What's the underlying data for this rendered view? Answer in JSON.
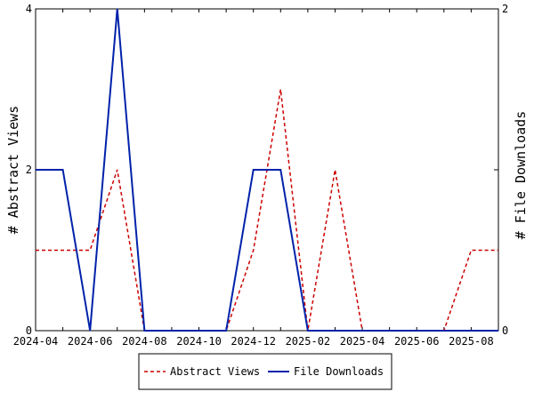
{
  "chart_data": {
    "type": "line",
    "title": "",
    "x": [
      "2024-04",
      "2024-05",
      "2024-06",
      "2024-07",
      "2024-08",
      "2024-09",
      "2024-10",
      "2024-11",
      "2024-12",
      "2025-01",
      "2025-02",
      "2025-03",
      "2025-04",
      "2025-05",
      "2025-06",
      "2025-07",
      "2025-08",
      "2025-09"
    ],
    "x_tick_labels": [
      "2024-04",
      "2024-06",
      "2024-08",
      "2024-10",
      "2024-12",
      "2025-02",
      "2025-04",
      "2025-06",
      "2025-08"
    ],
    "ylabel_left": "# Abstract Views",
    "ylabel_right": "# File Downloads",
    "ylim_left": [
      0,
      4
    ],
    "ylim_right": [
      0,
      2
    ],
    "yticks_left": [
      "0",
      "2",
      "4"
    ],
    "yticks_right": [
      "0",
      "1",
      "2"
    ],
    "grid": false,
    "legend_position": "bottom",
    "series": [
      {
        "name": "Abstract Views",
        "axis": "left",
        "color": "#cc0000",
        "dash": "dashed",
        "values": [
          1,
          1,
          1,
          2,
          0,
          0,
          0,
          0,
          1,
          3,
          0,
          2,
          0,
          0,
          0,
          0,
          1,
          1
        ]
      },
      {
        "name": "File Downloads",
        "axis": "right",
        "color": "#0022aa",
        "dash": "solid",
        "values": [
          1,
          1,
          0,
          2,
          0,
          0,
          0,
          0,
          1,
          1,
          0,
          0,
          0,
          0,
          0,
          0,
          0,
          0
        ]
      }
    ]
  }
}
